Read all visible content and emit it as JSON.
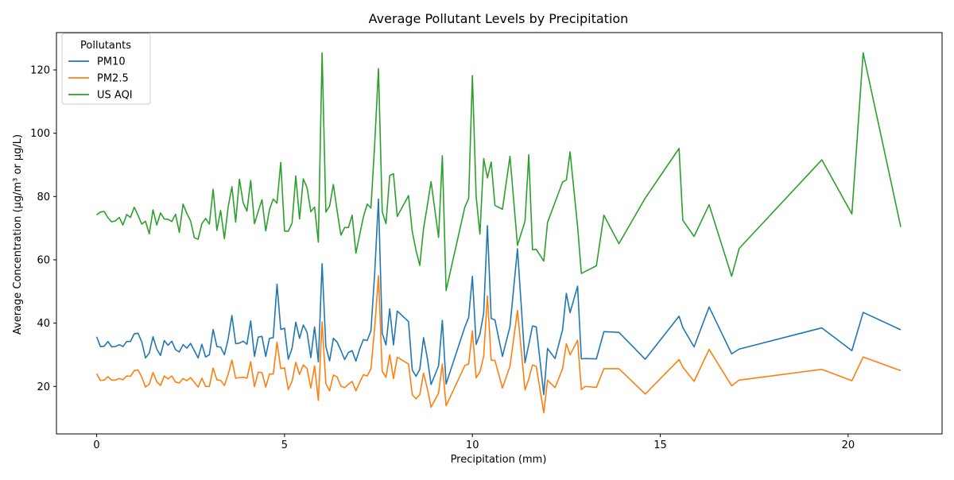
{
  "chart_data": {
    "type": "line",
    "title": "Average Pollutant Levels by Precipitation",
    "xlabel": "Precipitation (mm)",
    "ylabel": "Average Concentration (µg/m³ or µg/L)",
    "xlim": [
      -1.07,
      22.5
    ],
    "ylim": [
      5.0,
      131.8
    ],
    "xticks": [
      0,
      5,
      10,
      15,
      20
    ],
    "yticks": [
      20,
      40,
      60,
      80,
      100,
      120
    ],
    "grid": false,
    "legend": {
      "title": "Pollutants",
      "placement": "top-left"
    },
    "x": [
      0.0,
      0.1,
      0.2,
      0.3,
      0.4,
      0.5,
      0.6,
      0.7,
      0.8,
      0.9,
      1.0,
      1.1,
      1.2,
      1.3,
      1.4,
      1.5,
      1.6,
      1.7,
      1.8,
      1.9,
      2.0,
      2.1,
      2.2,
      2.3,
      2.4,
      2.5,
      2.6,
      2.7,
      2.8,
      2.9,
      3.0,
      3.1,
      3.2,
      3.3,
      3.4,
      3.5,
      3.6,
      3.7,
      3.8,
      3.9,
      4.0,
      4.1,
      4.2,
      4.3,
      4.4,
      4.5,
      4.6,
      4.7,
      4.8,
      4.9,
      5.0,
      5.1,
      5.2,
      5.3,
      5.4,
      5.5,
      5.6,
      5.7,
      5.8,
      5.9,
      6.0,
      6.1,
      6.2,
      6.3,
      6.4,
      6.5,
      6.6,
      6.7,
      6.8,
      6.9,
      7.0,
      7.1,
      7.2,
      7.3,
      7.4,
      7.5,
      7.6,
      7.7,
      7.8,
      7.9,
      8.0,
      8.3,
      8.4,
      8.5,
      8.6,
      8.7,
      8.8,
      8.9,
      9.1,
      9.2,
      9.3,
      9.8,
      9.9,
      10.0,
      10.1,
      10.2,
      10.3,
      10.4,
      10.5,
      10.6,
      10.8,
      11.0,
      11.2,
      11.4,
      11.5,
      11.6,
      11.7,
      11.9,
      12.0,
      12.2,
      12.4,
      12.5,
      12.6,
      12.8,
      12.9,
      13.0,
      13.3,
      13.5,
      13.9,
      14.6,
      15.5,
      15.6,
      15.9,
      16.3,
      16.9,
      17.1,
      19.3,
      20.1,
      20.4,
      21.4
    ],
    "series": [
      {
        "name": "PM10",
        "color": "#1f77b4",
        "values": [
          35.7,
          32.6,
          32.7,
          34.2,
          32.5,
          32.6,
          33.2,
          32.6,
          34.2,
          34.2,
          36.6,
          36.8,
          34.1,
          29.0,
          30.5,
          35.7,
          31.8,
          29.8,
          34.5,
          33.0,
          34.3,
          31.6,
          30.9,
          33.2,
          32.1,
          33.6,
          31.3,
          29.0,
          33.3,
          29.3,
          30.0,
          38.0,
          32.6,
          32.4,
          30.0,
          35.0,
          42.4,
          33.5,
          33.7,
          34.3,
          33.3,
          40.7,
          29.5,
          35.6,
          35.8,
          29.5,
          35.2,
          35.4,
          52.3,
          38.0,
          38.4,
          28.6,
          32.0,
          40.3,
          35.2,
          39.4,
          37.1,
          29.1,
          38.8,
          27.8,
          58.8,
          32.6,
          28.1,
          35.2,
          34.0,
          31.4,
          28.5,
          30.7,
          31.3,
          28.0,
          31.8,
          34.8,
          34.5,
          37.6,
          55.8,
          79.2,
          36.8,
          33.1,
          44.5,
          33.1,
          43.8,
          40.5,
          25.2,
          23.2,
          25.4,
          35.4,
          29.0,
          20.6,
          26.5,
          40.9,
          20.8,
          38.8,
          41.8,
          54.8,
          33.3,
          36.5,
          43.1,
          70.8,
          41.5,
          41.0,
          29.5,
          38.9,
          63.5,
          27.5,
          33.2,
          39.1,
          38.8,
          17.4,
          32.0,
          28.8,
          37.9,
          49.4,
          43.3,
          51.7,
          28.7,
          28.8,
          28.7,
          37.3,
          37.1,
          28.6,
          42.2,
          38.6,
          32.5,
          45.1,
          30.3,
          31.8,
          38.5,
          31.3,
          43.4,
          37.9
        ]
      },
      {
        "name": "PM2.5",
        "color": "#ff7f0e",
        "values": [
          24.0,
          21.9,
          22.0,
          23.1,
          22.0,
          22.0,
          22.5,
          22.1,
          23.3,
          23.2,
          25.0,
          25.2,
          23.0,
          19.8,
          20.7,
          24.4,
          21.5,
          20.3,
          23.3,
          22.4,
          23.3,
          21.4,
          21.1,
          22.5,
          21.8,
          22.8,
          21.3,
          19.8,
          22.6,
          20.0,
          20.0,
          25.8,
          22.1,
          21.9,
          20.3,
          23.8,
          28.3,
          22.6,
          22.8,
          22.9,
          22.6,
          27.8,
          19.9,
          24.5,
          24.4,
          19.8,
          23.9,
          23.9,
          34.0,
          25.6,
          25.9,
          19.0,
          21.6,
          27.6,
          23.8,
          26.8,
          25.6,
          19.5,
          26.5,
          15.6,
          40.4,
          20.9,
          18.6,
          23.6,
          23.0,
          20.1,
          19.6,
          20.7,
          21.6,
          18.6,
          21.3,
          23.7,
          23.3,
          25.6,
          38.6,
          55.0,
          24.8,
          22.9,
          30.0,
          22.5,
          29.2,
          27.1,
          17.4,
          16.1,
          17.4,
          24.2,
          19.4,
          13.4,
          17.9,
          27.1,
          13.9,
          26.6,
          27.1,
          37.6,
          22.7,
          24.6,
          29.5,
          48.6,
          28.3,
          28.2,
          19.5,
          26.4,
          44.0,
          18.9,
          22.3,
          26.8,
          26.3,
          11.7,
          22.0,
          19.6,
          25.6,
          33.5,
          30.0,
          34.6,
          19.0,
          20.0,
          19.7,
          25.6,
          25.6,
          17.6,
          28.5,
          26.1,
          21.6,
          31.7,
          20.2,
          22.0,
          25.4,
          21.8,
          29.3,
          25.0
        ]
      },
      {
        "name": "US AQI",
        "color": "#2ca02c",
        "values": [
          74.2,
          75.1,
          75.3,
          73.3,
          72.0,
          72.3,
          73.4,
          71.0,
          74.3,
          73.4,
          76.6,
          74.1,
          71.3,
          72.2,
          68.2,
          75.8,
          71.0,
          74.8,
          72.9,
          72.8,
          72.1,
          74.4,
          68.7,
          77.6,
          74.7,
          72.3,
          67.0,
          66.5,
          71.4,
          73.1,
          71.3,
          82.3,
          69.3,
          75.6,
          66.7,
          76.7,
          83.1,
          71.9,
          85.5,
          78.0,
          75.4,
          85.1,
          71.4,
          75.3,
          79.0,
          69.1,
          75.9,
          79.2,
          77.9,
          90.8,
          69.1,
          69.0,
          71.6,
          86.5,
          72.9,
          85.6,
          82.8,
          75.2,
          76.7,
          65.6,
          125.4,
          75.1,
          77.0,
          83.8,
          75.5,
          67.8,
          70.2,
          70.2,
          74.1,
          62.1,
          67.9,
          73.6,
          77.6,
          76.4,
          96.6,
          120.4,
          75.2,
          71.4,
          86.6,
          87.2,
          73.7,
          80.3,
          68.9,
          63.0,
          58.2,
          69.9,
          77.1,
          84.7,
          67.1,
          92.9,
          50.3,
          76.7,
          79.4,
          118.2,
          80.0,
          68.1,
          92.0,
          85.9,
          90.9,
          77.2,
          76.0,
          92.7,
          64.6,
          72.2,
          93.2,
          63.2,
          63.3,
          59.6,
          71.8,
          78.2,
          84.6,
          85.2,
          94.1,
          70.5,
          55.7,
          56.3,
          58.1,
          74.1,
          65.1,
          79.5,
          95.2,
          72.5,
          67.4,
          77.4,
          54.8,
          63.6,
          91.6,
          74.5,
          125.4,
          70.4
        ]
      }
    ]
  }
}
